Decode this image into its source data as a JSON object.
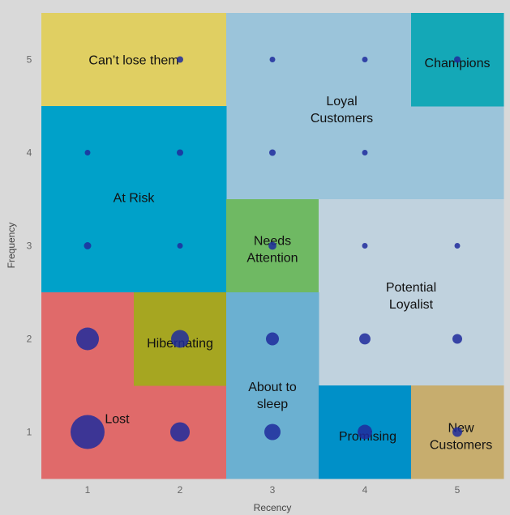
{
  "chart_data": {
    "type": "scatter",
    "subtype": "bubble-over-segment-grid",
    "xlabel": "Recency",
    "ylabel": "Frequency",
    "xlim": [
      0.5,
      5.5
    ],
    "ylim": [
      0.5,
      5.5
    ],
    "xticks": [
      "1",
      "2",
      "3",
      "4",
      "5"
    ],
    "yticks": [
      "1",
      "2",
      "3",
      "4",
      "5"
    ],
    "grid": false,
    "bubble_color": "#1f2b9c",
    "background": "#d9d9d9",
    "segments": [
      {
        "name": "Can't lose them",
        "label_lines": [
          "Can’t lose them"
        ],
        "color": "#e0cf62",
        "cells": [
          [
            1,
            5
          ],
          [
            2,
            5
          ]
        ]
      },
      {
        "name": "Loyal Customers",
        "label_lines": [
          "Loyal",
          "Customers"
        ],
        "color": "#9bc4da",
        "cells": [
          [
            3,
            5
          ],
          [
            4,
            5
          ],
          [
            3,
            4
          ],
          [
            4,
            4
          ],
          [
            5,
            4
          ]
        ]
      },
      {
        "name": "Champions",
        "label_lines": [
          "Champions"
        ],
        "color": "#14a8b7",
        "cells": [
          [
            5,
            5
          ]
        ]
      },
      {
        "name": "At Risk",
        "label_lines": [
          "At Risk"
        ],
        "color": "#00a1c9",
        "cells": [
          [
            1,
            4
          ],
          [
            2,
            4
          ],
          [
            1,
            3
          ],
          [
            2,
            3
          ]
        ]
      },
      {
        "name": "Needs Attention",
        "label_lines": [
          "Needs",
          "Attention"
        ],
        "color": "#6fb963",
        "cells": [
          [
            3,
            3
          ]
        ]
      },
      {
        "name": "Potential Loyalist",
        "label_lines": [
          "Potential",
          "Loyalist"
        ],
        "color": "#c0d2de",
        "cells": [
          [
            4,
            3
          ],
          [
            5,
            3
          ],
          [
            4,
            2
          ],
          [
            5,
            2
          ]
        ]
      },
      {
        "name": "Lost",
        "label_lines": [
          "Lost"
        ],
        "color": "#e06a6a",
        "cells": [
          [
            1,
            2
          ],
          [
            1,
            1
          ],
          [
            2,
            1
          ]
        ]
      },
      {
        "name": "Hibernating",
        "label_lines": [
          "Hibernating"
        ],
        "color": "#a6a621",
        "cells": [
          [
            2,
            2
          ]
        ]
      },
      {
        "name": "About to sleep",
        "label_lines": [
          "About to",
          "sleep"
        ],
        "color": "#6bb0d1",
        "cells": [
          [
            3,
            2
          ],
          [
            3,
            1
          ]
        ]
      },
      {
        "name": "Promising",
        "label_lines": [
          "Promising"
        ],
        "color": "#0090c8",
        "cells": [
          [
            4,
            1
          ]
        ]
      },
      {
        "name": "New Customers",
        "label_lines": [
          "New",
          "Customers"
        ],
        "color": "#c7ad6e",
        "cells": [
          [
            5,
            1
          ]
        ]
      }
    ],
    "points": [
      {
        "x": 1,
        "y": 1,
        "size": 110
      },
      {
        "x": 2,
        "y": 1,
        "size": 36
      },
      {
        "x": 3,
        "y": 1,
        "size": 25
      },
      {
        "x": 4,
        "y": 1,
        "size": 20
      },
      {
        "x": 5,
        "y": 1,
        "size": 9
      },
      {
        "x": 1,
        "y": 2,
        "size": 49
      },
      {
        "x": 2,
        "y": 2,
        "size": 30
      },
      {
        "x": 3,
        "y": 2,
        "size": 16
      },
      {
        "x": 4,
        "y": 2,
        "size": 12
      },
      {
        "x": 5,
        "y": 2,
        "size": 9
      },
      {
        "x": 1,
        "y": 3,
        "size": 5
      },
      {
        "x": 2,
        "y": 3,
        "size": 3
      },
      {
        "x": 3,
        "y": 3,
        "size": 6
      },
      {
        "x": 4,
        "y": 3,
        "size": 3
      },
      {
        "x": 5,
        "y": 3,
        "size": 3
      },
      {
        "x": 1,
        "y": 4,
        "size": 3
      },
      {
        "x": 2,
        "y": 4,
        "size": 4
      },
      {
        "x": 3,
        "y": 4,
        "size": 4
      },
      {
        "x": 4,
        "y": 4,
        "size": 3
      },
      {
        "x": 2,
        "y": 5,
        "size": 4
      },
      {
        "x": 3,
        "y": 5,
        "size": 3
      },
      {
        "x": 4,
        "y": 5,
        "size": 3
      },
      {
        "x": 5,
        "y": 5,
        "size": 4
      }
    ]
  }
}
